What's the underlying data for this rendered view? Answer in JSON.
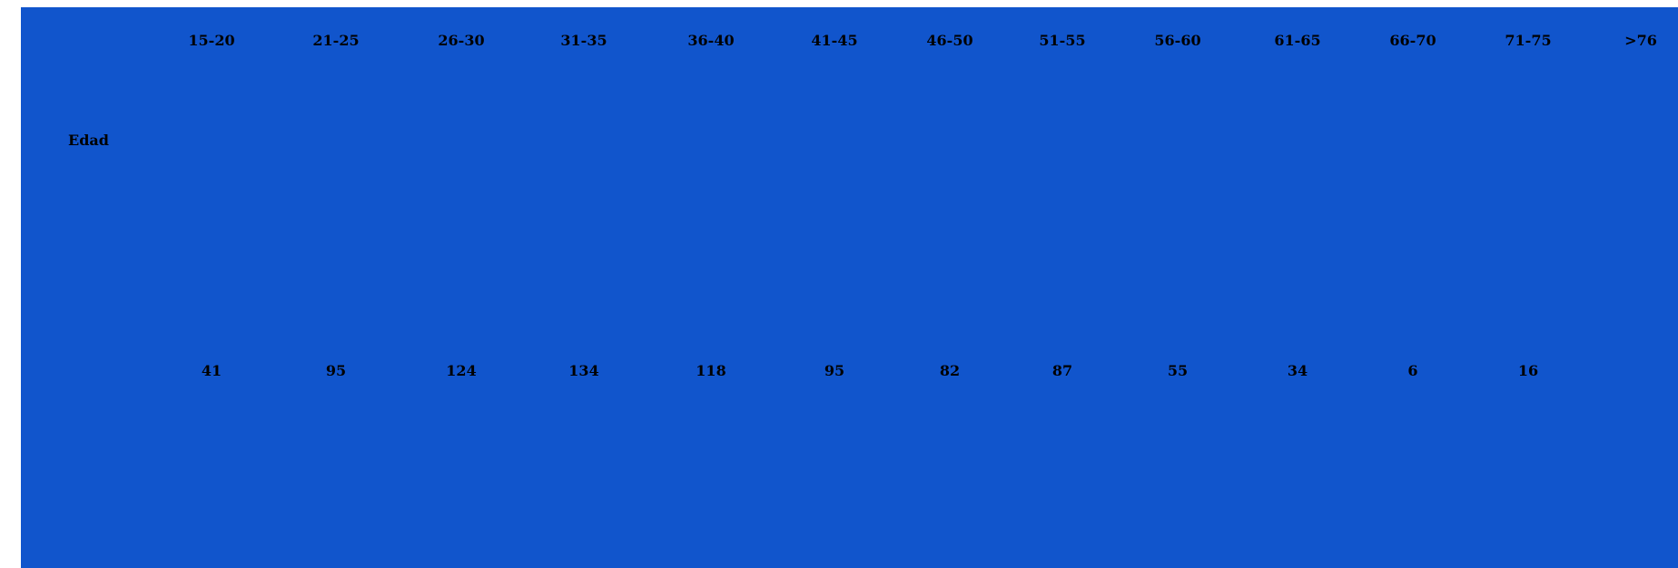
{
  "table": {
    "row_label": "Edad",
    "headers": [
      "15-20",
      "21-25",
      "26-30",
      "31-35",
      "36-40",
      "41-45",
      "46-50",
      "51-55",
      "56-60",
      "61-65",
      "66-70",
      "71-75",
      ">76"
    ],
    "values": [
      "41",
      "95",
      "124",
      "134",
      "118",
      "95",
      "82",
      "87",
      "55",
      "34",
      "6",
      "16",
      ""
    ]
  },
  "colors": {
    "background": "#1155cc",
    "text": "#000000"
  }
}
